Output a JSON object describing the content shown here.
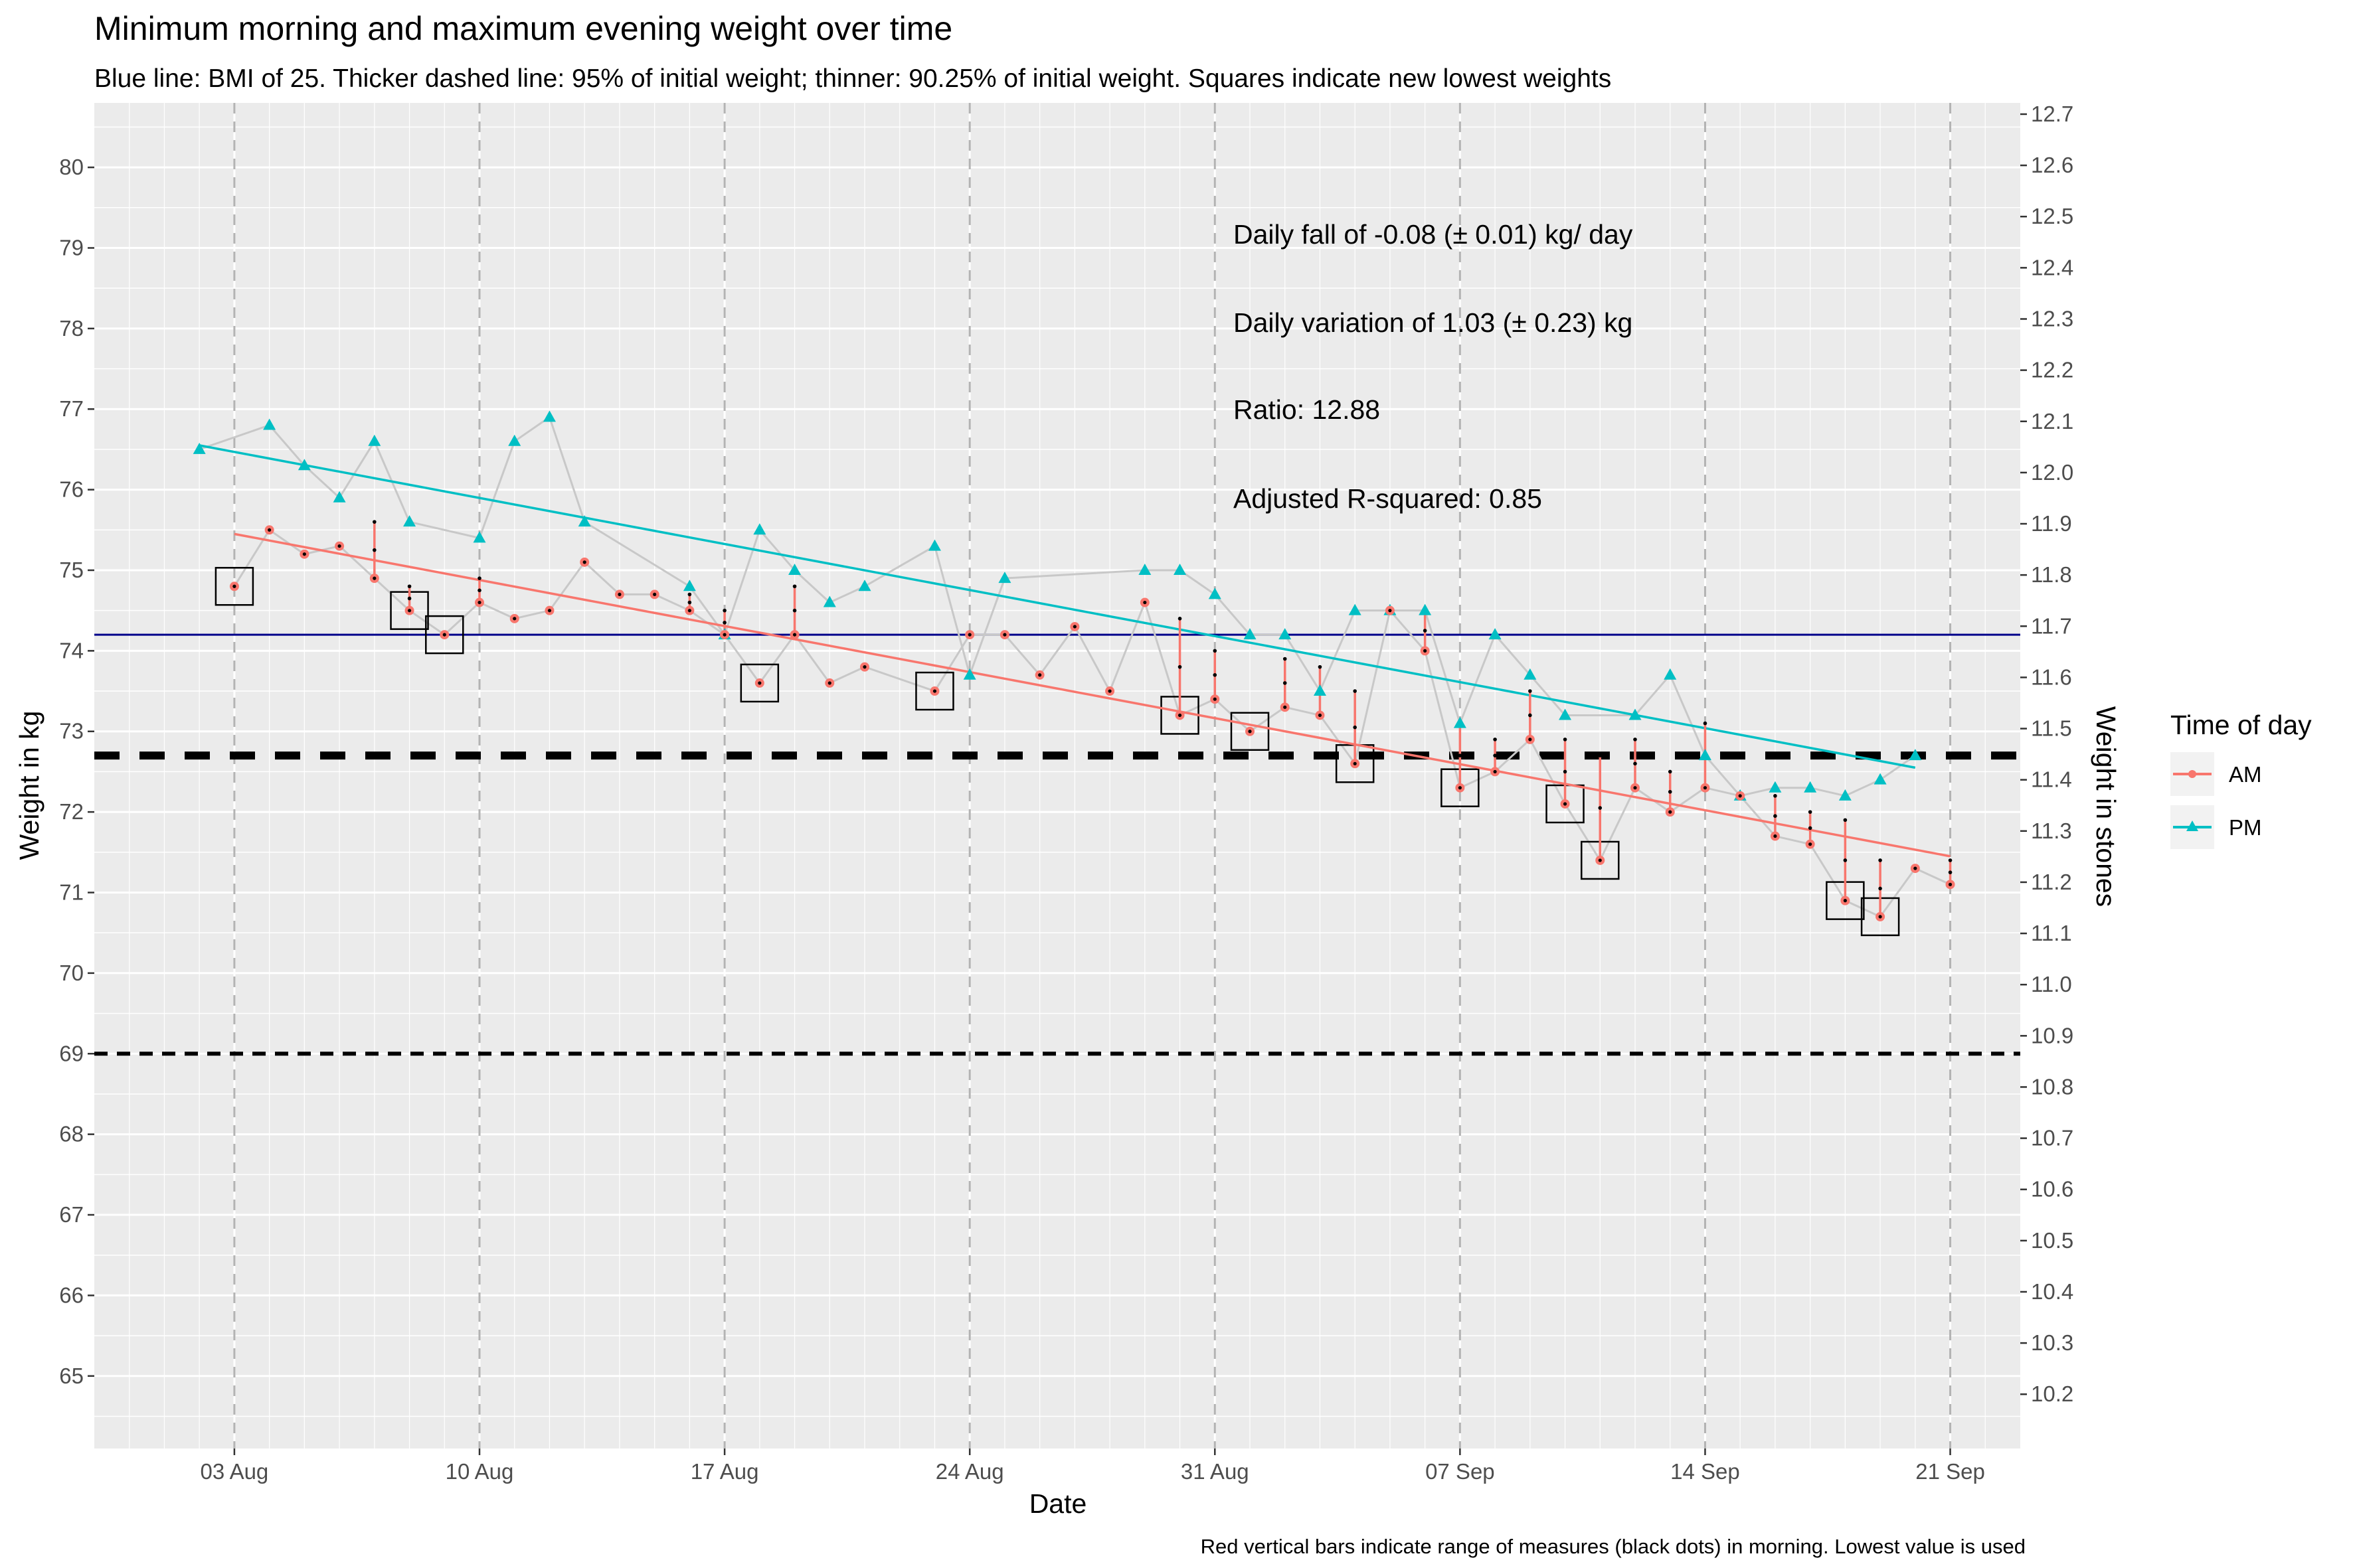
{
  "chart_data": {
    "type": "line",
    "title": "Minimum morning and maximum evening weight over time",
    "subtitle": "Blue line: BMI of 25. Thicker dashed line: 95% of initial weight; thinner: 90.25% of initial weight. Squares indicate new lowest weights",
    "xlabel": "Date",
    "ylabel": "Weight in kg",
    "y2label": "Weight in stones",
    "caption": "Red vertical bars indicate range of measures (black dots) in morning. Lowest value is used",
    "legend": {
      "title": "Time of day",
      "position": "right",
      "items": [
        "AM",
        "PM"
      ]
    },
    "colors": {
      "AM": "#F8766D",
      "PM": "#00BFC4",
      "bmi": "#00008B",
      "panel": "#EBEBEB",
      "grid": "#FFFFFF",
      "connector": "#C8C8C8"
    },
    "xlim": [
      "2023-07-30",
      "2023-09-23"
    ],
    "ylim": [
      64.1,
      80.8
    ],
    "y2lim": [
      10.094,
      12.722
    ],
    "x_ticks": [
      {
        "date": "2023-08-03",
        "label": "03 Aug"
      },
      {
        "date": "2023-08-10",
        "label": "10 Aug"
      },
      {
        "date": "2023-08-17",
        "label": "17 Aug"
      },
      {
        "date": "2023-08-24",
        "label": "24 Aug"
      },
      {
        "date": "2023-08-31",
        "label": "31 Aug"
      },
      {
        "date": "2023-09-07",
        "label": "07 Sep"
      },
      {
        "date": "2023-09-14",
        "label": "14 Sep"
      },
      {
        "date": "2023-09-21",
        "label": "21 Sep"
      }
    ],
    "y_ticks": [
      65,
      66,
      67,
      68,
      69,
      70,
      71,
      72,
      73,
      74,
      75,
      76,
      77,
      78,
      79,
      80
    ],
    "y2_ticks": [
      "10.2",
      "10.3",
      "10.4",
      "10.5",
      "10.6",
      "10.7",
      "10.8",
      "10.9",
      "11.0",
      "11.1",
      "11.2",
      "11.3",
      "11.4",
      "11.5",
      "11.6",
      "11.7",
      "11.8",
      "11.9",
      "12.0",
      "12.1",
      "12.2",
      "12.3",
      "12.4",
      "12.5",
      "12.6",
      "12.7"
    ],
    "reference_lines": {
      "bmi_25": 74.2,
      "pct95": 72.7,
      "pct9025": 69.0
    },
    "annotations": [
      "Daily fall of -0.08 (± 0.01) kg/ day",
      "Daily variation of 1.03 (± 0.23) kg",
      "Ratio: 12.88",
      "Adjusted R-squared: 0.85"
    ],
    "trend": {
      "AM": {
        "start": [
          "2023-08-03",
          75.45
        ],
        "end": [
          "2023-09-21",
          71.45
        ]
      },
      "PM": {
        "start": [
          "2023-08-02",
          76.55
        ],
        "end": [
          "2023-09-20",
          72.55
        ]
      }
    },
    "series": [
      {
        "name": "AM",
        "points": [
          {
            "x": "2023-08-03",
            "y": 74.8
          },
          {
            "x": "2023-08-04",
            "y": 75.5
          },
          {
            "x": "2023-08-05",
            "y": 75.2
          },
          {
            "x": "2023-08-06",
            "y": 75.3
          },
          {
            "x": "2023-08-07",
            "y": 74.9
          },
          {
            "x": "2023-08-08",
            "y": 74.5
          },
          {
            "x": "2023-08-09",
            "y": 74.2
          },
          {
            "x": "2023-08-10",
            "y": 74.6
          },
          {
            "x": "2023-08-11",
            "y": 74.4
          },
          {
            "x": "2023-08-12",
            "y": 74.5
          },
          {
            "x": "2023-08-13",
            "y": 75.1
          },
          {
            "x": "2023-08-14",
            "y": 74.7
          },
          {
            "x": "2023-08-15",
            "y": 74.7
          },
          {
            "x": "2023-08-16",
            "y": 74.5
          },
          {
            "x": "2023-08-17",
            "y": 74.2
          },
          {
            "x": "2023-08-18",
            "y": 73.6
          },
          {
            "x": "2023-08-19",
            "y": 74.2
          },
          {
            "x": "2023-08-20",
            "y": 73.6
          },
          {
            "x": "2023-08-21",
            "y": 73.8
          },
          {
            "x": "2023-08-23",
            "y": 73.5
          },
          {
            "x": "2023-08-24",
            "y": 74.2
          },
          {
            "x": "2023-08-25",
            "y": 74.2
          },
          {
            "x": "2023-08-26",
            "y": 73.7
          },
          {
            "x": "2023-08-27",
            "y": 74.3
          },
          {
            "x": "2023-08-28",
            "y": 73.5
          },
          {
            "x": "2023-08-29",
            "y": 74.6
          },
          {
            "x": "2023-08-30",
            "y": 73.2
          },
          {
            "x": "2023-08-31",
            "y": 73.4
          },
          {
            "x": "2023-09-01",
            "y": 73.0
          },
          {
            "x": "2023-09-02",
            "y": 73.3
          },
          {
            "x": "2023-09-03",
            "y": 73.2
          },
          {
            "x": "2023-09-04",
            "y": 72.6
          },
          {
            "x": "2023-09-05",
            "y": 74.5
          },
          {
            "x": "2023-09-06",
            "y": 74.0
          },
          {
            "x": "2023-09-07",
            "y": 72.3
          },
          {
            "x": "2023-09-08",
            "y": 72.5
          },
          {
            "x": "2023-09-09",
            "y": 72.9
          },
          {
            "x": "2023-09-10",
            "y": 72.1
          },
          {
            "x": "2023-09-11",
            "y": 71.4
          },
          {
            "x": "2023-09-12",
            "y": 72.3
          },
          {
            "x": "2023-09-13",
            "y": 72.0
          },
          {
            "x": "2023-09-14",
            "y": 72.3
          },
          {
            "x": "2023-09-15",
            "y": 72.2
          },
          {
            "x": "2023-09-16",
            "y": 71.7
          },
          {
            "x": "2023-09-17",
            "y": 71.6
          },
          {
            "x": "2023-09-18",
            "y": 70.9
          },
          {
            "x": "2023-09-19",
            "y": 70.7
          },
          {
            "x": "2023-09-20",
            "y": 71.3
          },
          {
            "x": "2023-09-21",
            "y": 71.1
          }
        ]
      },
      {
        "name": "PM",
        "points": [
          {
            "x": "2023-08-02",
            "y": 76.5
          },
          {
            "x": "2023-08-04",
            "y": 76.8
          },
          {
            "x": "2023-08-05",
            "y": 76.3
          },
          {
            "x": "2023-08-06",
            "y": 75.9
          },
          {
            "x": "2023-08-07",
            "y": 76.6
          },
          {
            "x": "2023-08-08",
            "y": 75.6
          },
          {
            "x": "2023-08-10",
            "y": 75.4
          },
          {
            "x": "2023-08-11",
            "y": 76.6
          },
          {
            "x": "2023-08-12",
            "y": 76.9
          },
          {
            "x": "2023-08-13",
            "y": 75.6
          },
          {
            "x": "2023-08-16",
            "y": 74.8
          },
          {
            "x": "2023-08-17",
            "y": 74.2
          },
          {
            "x": "2023-08-18",
            "y": 75.5
          },
          {
            "x": "2023-08-19",
            "y": 75.0
          },
          {
            "x": "2023-08-20",
            "y": 74.6
          },
          {
            "x": "2023-08-21",
            "y": 74.8
          },
          {
            "x": "2023-08-23",
            "y": 75.3
          },
          {
            "x": "2023-08-24",
            "y": 73.7
          },
          {
            "x": "2023-08-25",
            "y": 74.9
          },
          {
            "x": "2023-08-29",
            "y": 75.0
          },
          {
            "x": "2023-08-30",
            "y": 75.0
          },
          {
            "x": "2023-08-31",
            "y": 74.7
          },
          {
            "x": "2023-09-01",
            "y": 74.2
          },
          {
            "x": "2023-09-02",
            "y": 74.2
          },
          {
            "x": "2023-09-03",
            "y": 73.5
          },
          {
            "x": "2023-09-04",
            "y": 74.5
          },
          {
            "x": "2023-09-05",
            "y": 74.5
          },
          {
            "x": "2023-09-06",
            "y": 74.5
          },
          {
            "x": "2023-09-07",
            "y": 73.1
          },
          {
            "x": "2023-09-08",
            "y": 74.2
          },
          {
            "x": "2023-09-09",
            "y": 73.7
          },
          {
            "x": "2023-09-10",
            "y": 73.2
          },
          {
            "x": "2023-09-12",
            "y": 73.2
          },
          {
            "x": "2023-09-13",
            "y": 73.7
          },
          {
            "x": "2023-09-14",
            "y": 72.7
          },
          {
            "x": "2023-09-15",
            "y": 72.2
          },
          {
            "x": "2023-09-16",
            "y": 72.3
          },
          {
            "x": "2023-09-17",
            "y": 72.3
          },
          {
            "x": "2023-09-18",
            "y": 72.2
          },
          {
            "x": "2023-09-19",
            "y": 72.4
          },
          {
            "x": "2023-09-20",
            "y": 72.7
          }
        ]
      }
    ],
    "morning_ranges": [
      {
        "x": "2023-08-07",
        "min": 74.9,
        "max": 75.6
      },
      {
        "x": "2023-08-08",
        "min": 74.5,
        "max": 74.8
      },
      {
        "x": "2023-08-10",
        "min": 74.6,
        "max": 74.9
      },
      {
        "x": "2023-08-16",
        "min": 74.5,
        "max": 74.7
      },
      {
        "x": "2023-08-17",
        "min": 74.2,
        "max": 74.5
      },
      {
        "x": "2023-08-19",
        "min": 74.2,
        "max": 74.8
      },
      {
        "x": "2023-08-30",
        "min": 73.2,
        "max": 74.4
      },
      {
        "x": "2023-08-31",
        "min": 73.4,
        "max": 74.0
      },
      {
        "x": "2023-09-02",
        "min": 73.3,
        "max": 73.9
      },
      {
        "x": "2023-09-03",
        "min": 73.2,
        "max": 73.8
      },
      {
        "x": "2023-09-04",
        "min": 72.6,
        "max": 73.5
      },
      {
        "x": "2023-09-06",
        "min": 74.0,
        "max": 74.5
      },
      {
        "x": "2023-09-07",
        "min": 72.3,
        "max": 73.1
      },
      {
        "x": "2023-09-08",
        "min": 72.5,
        "max": 72.9
      },
      {
        "x": "2023-09-09",
        "min": 72.9,
        "max": 73.5
      },
      {
        "x": "2023-09-10",
        "min": 72.1,
        "max": 72.9
      },
      {
        "x": "2023-09-11",
        "min": 71.4,
        "max": 72.7
      },
      {
        "x": "2023-09-12",
        "min": 72.3,
        "max": 72.9
      },
      {
        "x": "2023-09-13",
        "min": 72.0,
        "max": 72.5
      },
      {
        "x": "2023-09-14",
        "min": 72.3,
        "max": 73.1
      },
      {
        "x": "2023-09-16",
        "min": 71.7,
        "max": 72.2
      },
      {
        "x": "2023-09-17",
        "min": 71.6,
        "max": 72.0
      },
      {
        "x": "2023-09-18",
        "min": 70.9,
        "max": 71.9
      },
      {
        "x": "2023-09-19",
        "min": 70.7,
        "max": 71.4
      },
      {
        "x": "2023-09-21",
        "min": 71.1,
        "max": 71.4
      }
    ],
    "new_lowest": [
      "2023-08-03",
      "2023-08-08",
      "2023-08-09",
      "2023-08-18",
      "2023-08-23",
      "2023-08-30",
      "2023-09-01",
      "2023-09-04",
      "2023-09-07",
      "2023-09-10",
      "2023-09-11",
      "2023-09-18",
      "2023-09-19"
    ]
  }
}
